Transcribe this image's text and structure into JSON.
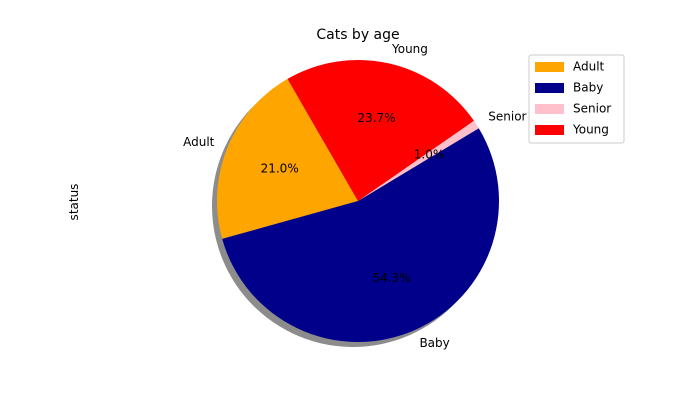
{
  "chart_data": {
    "type": "pie",
    "title": "Cats by age",
    "ylabel": "status",
    "labels": [
      "Adult",
      "Baby",
      "Senior",
      "Young"
    ],
    "values": [
      21.0,
      54.3,
      1.0,
      23.7
    ],
    "percent_labels": [
      "21.0%",
      "54.3%",
      "1.0%",
      "23.7%"
    ],
    "colors": [
      "#FFA500",
      "#00008B",
      "#FFC0CB",
      "#FF0000"
    ],
    "start_angle_deg": 120,
    "shadow": true,
    "legend": {
      "placement": "top-right",
      "entries": [
        "Adult",
        "Baby",
        "Senior",
        "Young"
      ]
    }
  }
}
